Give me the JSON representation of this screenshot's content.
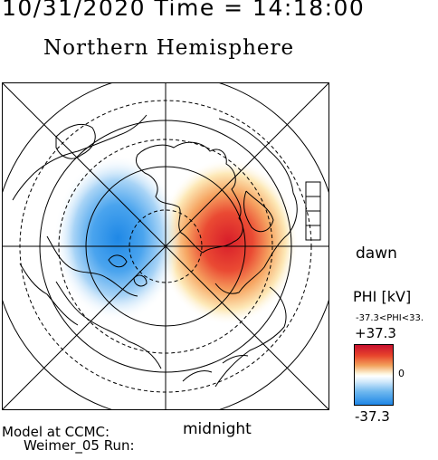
{
  "header": {
    "timestamp": "10/31/2020 Time = 14:18:00",
    "title": "Northern Hemisphere"
  },
  "labels": {
    "dawn": "dawn",
    "midnight": "midnight",
    "model_at": "Model at CCMC:",
    "run": "Weimer_05 Run:"
  },
  "colorbar": {
    "quantity": "PHI [kV]",
    "range_text": "-37.3<PHI<33.",
    "max_label": "+37.3",
    "zero_label": "0",
    "min_label": "-37.3",
    "max_color": "#c8102e",
    "min_color": "#1e86e6"
  },
  "potential_cells": {
    "dusk_cell_color": "#1e86e6",
    "dawn_cell_color": "#e8452c"
  }
}
